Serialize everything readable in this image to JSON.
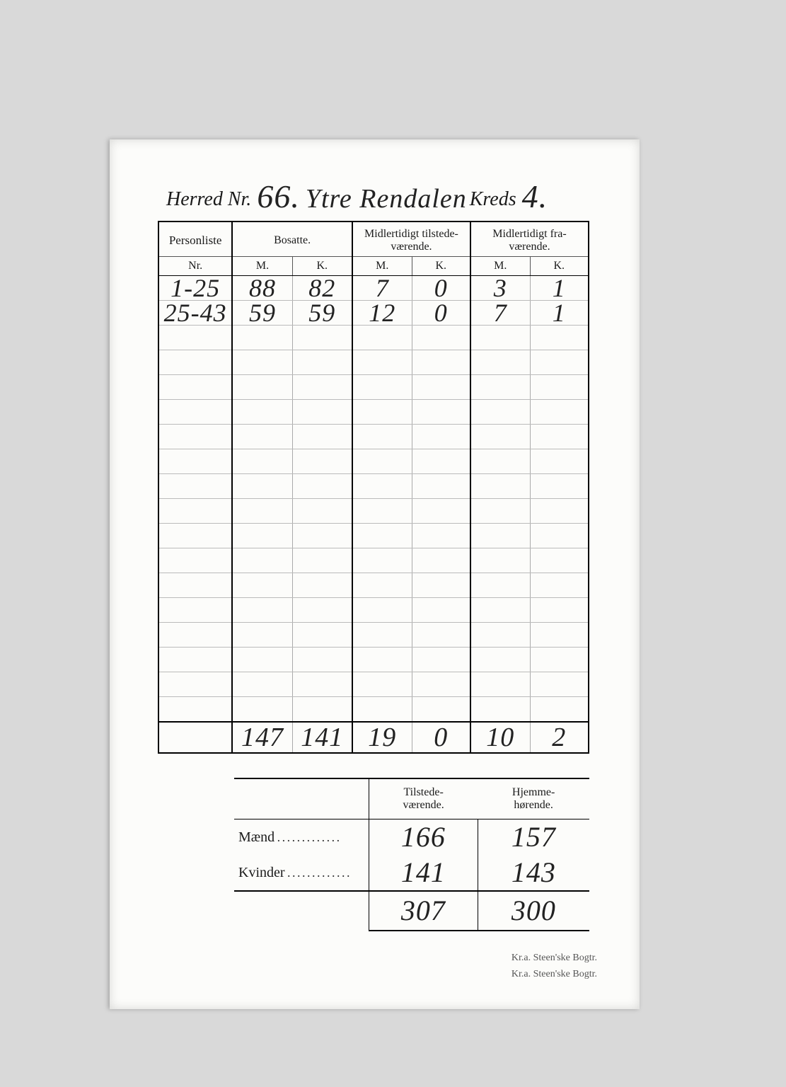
{
  "header": {
    "label_herred": "Herred Nr.",
    "herred_no": "66.",
    "herred_name": "Ytre Rendalen",
    "label_kreds": "Kreds",
    "kreds_no": "4."
  },
  "columns": {
    "personliste_top": "Personliste",
    "personliste_sub": "Nr.",
    "bosatte": "Bosatte.",
    "tilstede": "Midlertidigt tilstede-\nværende.",
    "fravaer": "Midlertidigt fra-\nværende.",
    "m": "M.",
    "k": "K."
  },
  "rows": [
    {
      "nr": "1-25",
      "m1": "88",
      "k1": "82",
      "m2": "7",
      "k2": "0",
      "m3": "3",
      "k3": "1"
    },
    {
      "nr": "25-43",
      "m1": "59",
      "k1": "59",
      "m2": "12",
      "k2": "0",
      "m3": "7",
      "k3": "1"
    }
  ],
  "empty_row_count": 16,
  "totals": {
    "nr": "",
    "m1": "147",
    "k1": "141",
    "m2": "19",
    "k2": "0",
    "m3": "10",
    "k3": "2"
  },
  "summary": {
    "col_tilstede": "Tilstede-\nværende.",
    "col_hjemme": "Hjemme-\nhørende.",
    "row_m_label": "Mænd",
    "row_k_label": "Kvinder",
    "maend": {
      "tilstede": "166",
      "hjemme": "157"
    },
    "kvinder": {
      "tilstede": "141",
      "hjemme": "143"
    },
    "sum": {
      "tilstede": "307",
      "hjemme": "300"
    }
  },
  "imprint": "Kr.a.  Steen'ske Bogtr.",
  "style": {
    "page_bg": "#d9d9d9",
    "paper_bg": "#fcfcfa",
    "ink": "#1a1a1a",
    "rule_strong": "#000000",
    "rule_light": "#bbbbbb",
    "printed_font": "Times New Roman",
    "hand_font": "Brush Script MT",
    "printed_size_pt": 12,
    "hand_size_pt": 28
  }
}
